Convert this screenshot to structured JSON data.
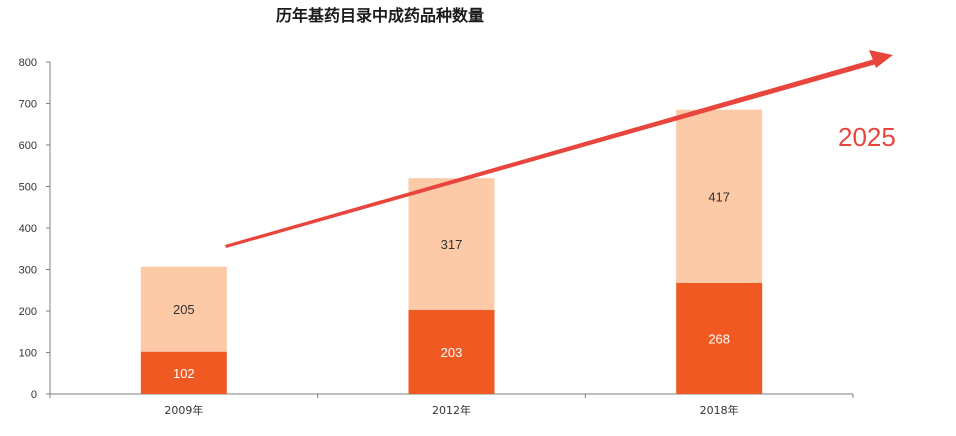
{
  "chart_data": {
    "type": "bar",
    "stacked": true,
    "title": "历年基药目录中成药品种数量",
    "categories": [
      "2009年",
      "2012年",
      "2018年"
    ],
    "series": [
      {
        "values": [
          102,
          203,
          268
        ],
        "color": "#f05a22"
      },
      {
        "values": [
          205,
          317,
          417
        ],
        "color": "#fdcaa8"
      }
    ],
    "ylim": [
      0,
      800
    ],
    "yticks": [
      0,
      100,
      200,
      300,
      400,
      500,
      600,
      700,
      800
    ],
    "grid": false,
    "annotation": "2025",
    "trend_arrow_color": "#e8453c"
  }
}
